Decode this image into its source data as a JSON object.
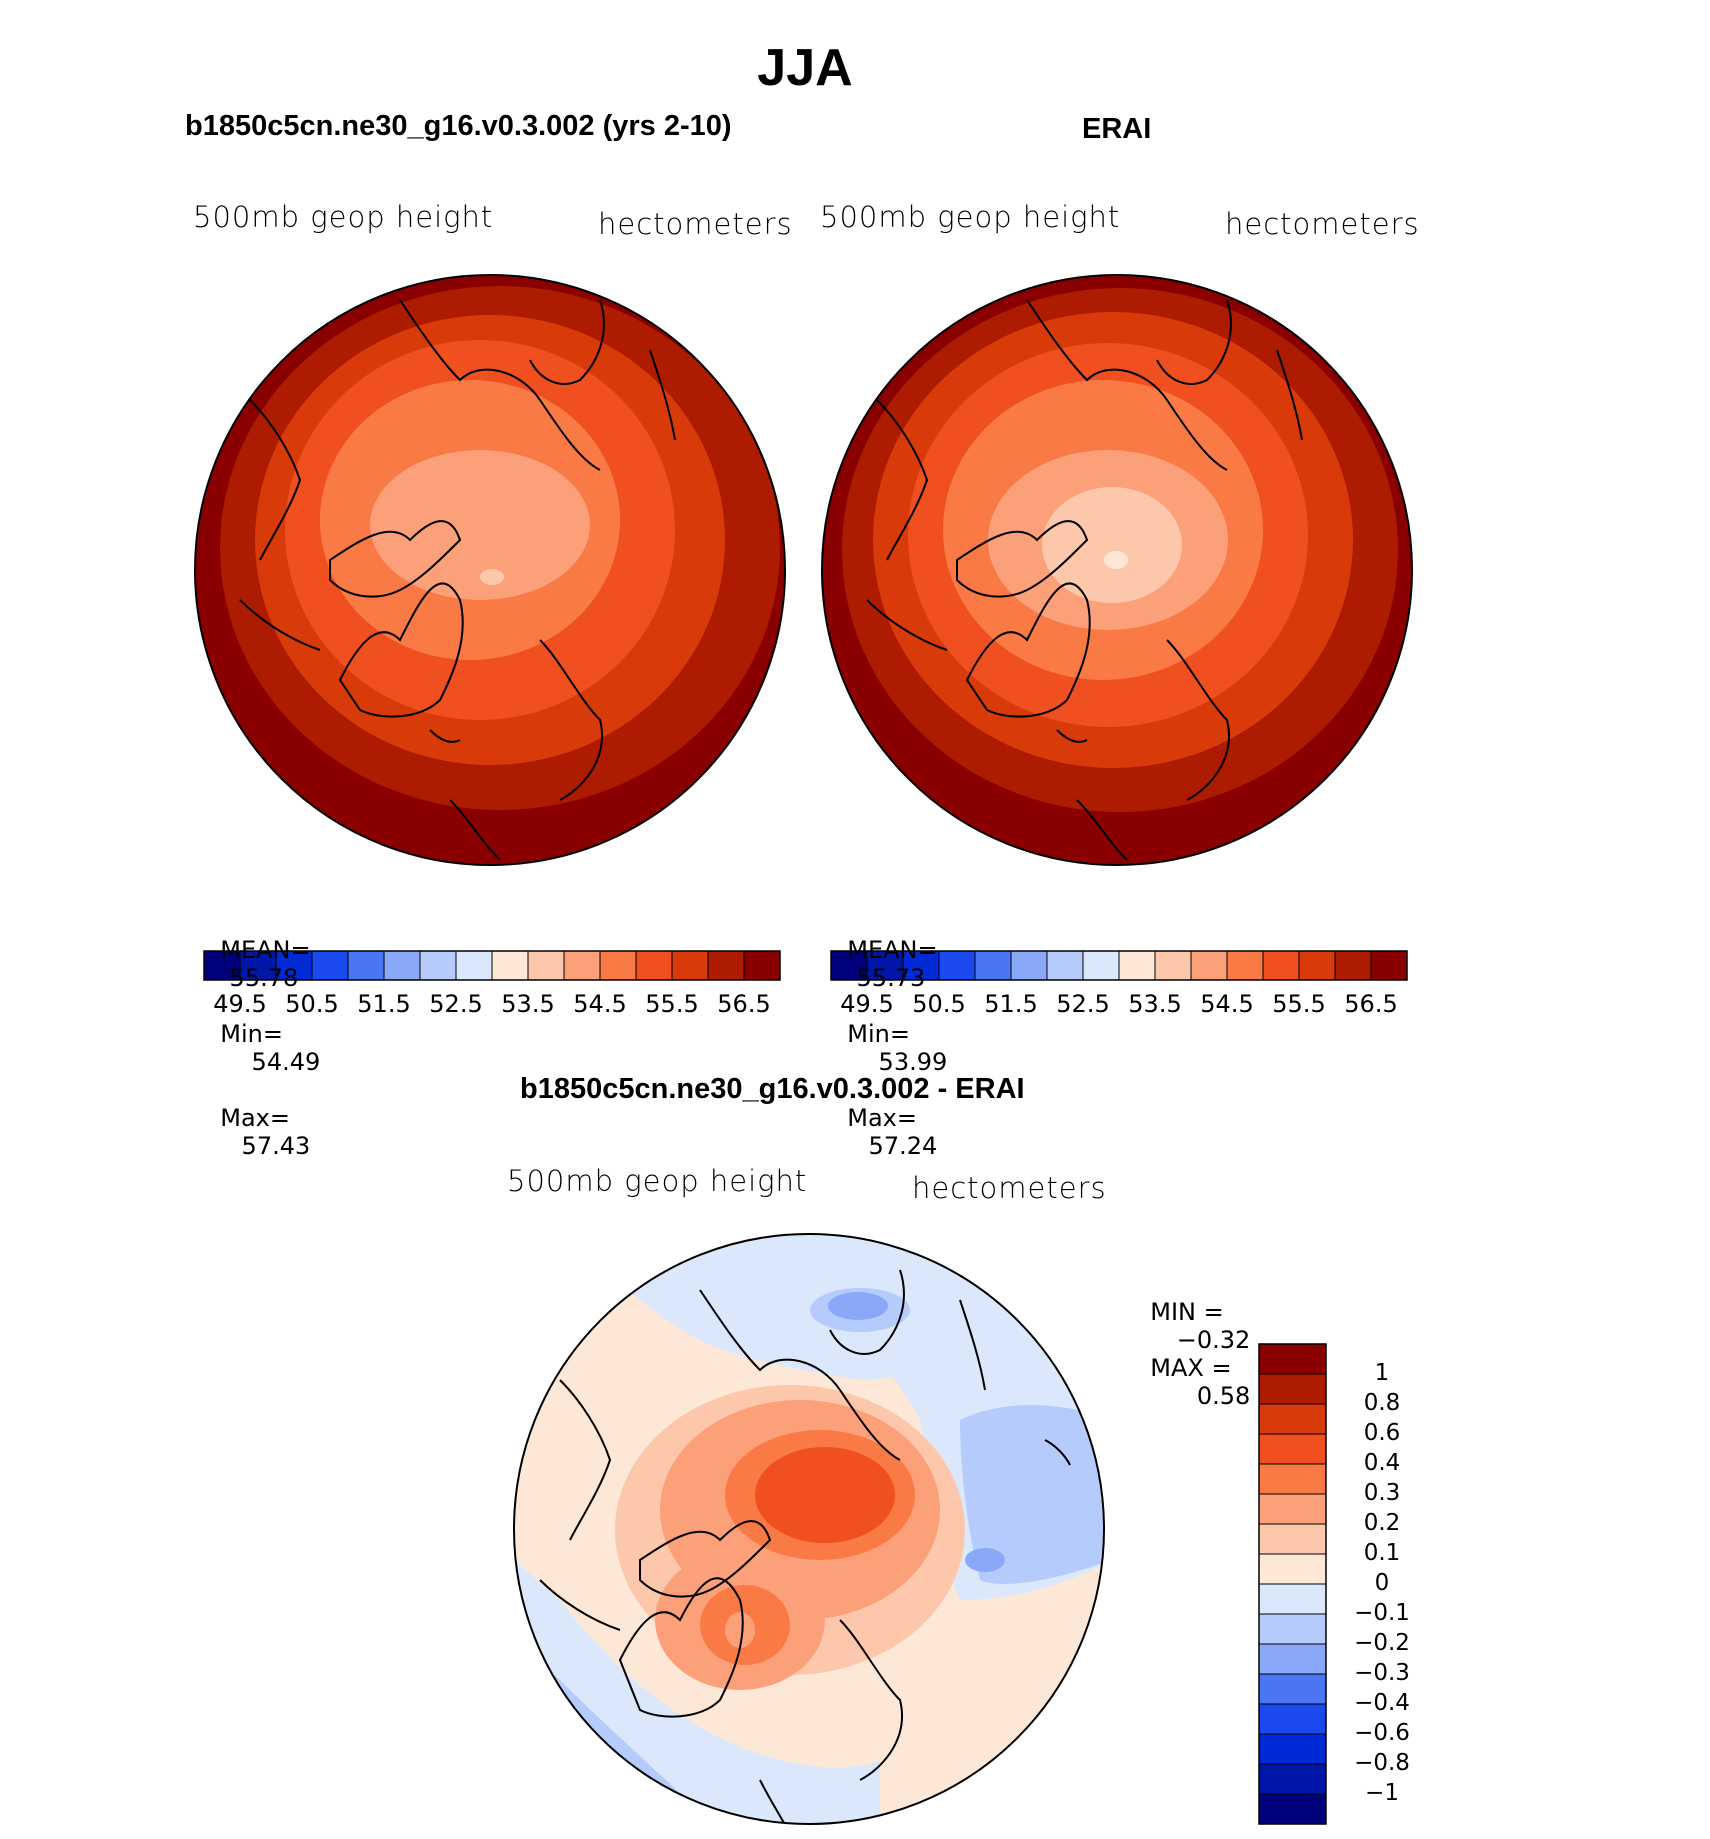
{
  "figure": {
    "title": "JJA",
    "panels": [
      {
        "id": "model",
        "title": "b1850c5cn.ne30_g16.v0.3.002 (yrs 2-10)",
        "variable": "500mb geop height",
        "units": "hectometers",
        "stats": {
          "mean_label": "MEAN=",
          "mean": "55.78",
          "min_label": "Min=",
          "min": "54.49",
          "max_label": "Max=",
          "max": "57.43"
        }
      },
      {
        "id": "obs",
        "title": "ERAI",
        "variable": "500mb geop height",
        "units": "hectometers",
        "stats": {
          "mean_label": "MEAN=",
          "mean": "55.73",
          "min_label": "Min=",
          "min": "53.99",
          "max_label": "Max=",
          "max": "57.24"
        }
      },
      {
        "id": "diff",
        "title": "b1850c5cn.ne30_g16.v0.3.002 - ERAI",
        "variable": "500mb geop height",
        "units": "hectometers",
        "stats": {
          "min_label": "MIN =",
          "min": "−0.32",
          "max_label": "MAX =",
          "max": "0.58"
        }
      }
    ],
    "abs_colorbar": {
      "tick_labels": [
        "49.5",
        "50.5",
        "51.5",
        "52.5",
        "53.5",
        "54.5",
        "55.5",
        "56.5"
      ],
      "colors": [
        "#00007a",
        "#0016a8",
        "#002ad6",
        "#1a4aef",
        "#4a76f5",
        "#8aa8f8",
        "#b5cbfb",
        "#dbe8fc",
        "#fde8d8",
        "#fcc7aa",
        "#fca07a",
        "#f97a45",
        "#f0501f",
        "#d83a0a",
        "#ad1c00",
        "#8a0000"
      ]
    },
    "diff_colorbar": {
      "labels": [
        "1",
        "0.8",
        "0.6",
        "0.4",
        "0.3",
        "0.2",
        "0.1",
        "0",
        "−0.1",
        "−0.2",
        "−0.3",
        "−0.4",
        "−0.6",
        "−0.8",
        "−1"
      ],
      "colors": [
        "#8a0000",
        "#ad1c00",
        "#d83a0a",
        "#f0501f",
        "#f97a45",
        "#fca07a",
        "#fcc7aa",
        "#fde8d8",
        "#dbe8fc",
        "#b5cbfb",
        "#8aa8f8",
        "#4a76f5",
        "#1a4aef",
        "#002ad6",
        "#0016a8",
        "#00007a"
      ]
    }
  }
}
